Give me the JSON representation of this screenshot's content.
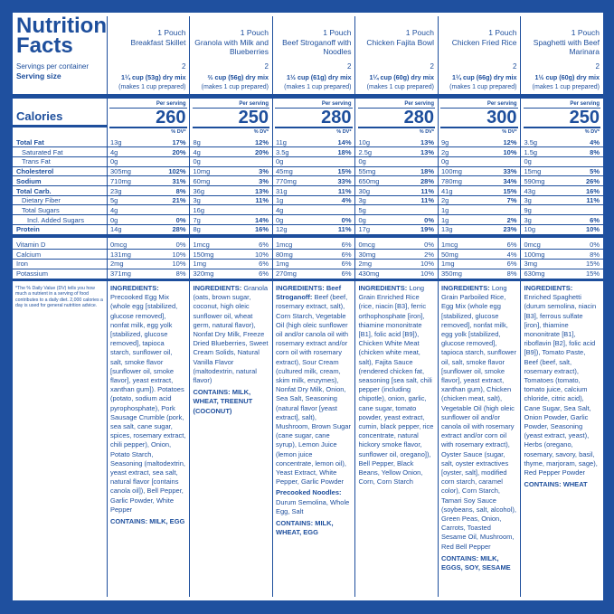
{
  "title": "Nutrition Facts",
  "servings_label": "Servings per container",
  "serving_size_label": "Serving size",
  "calories_label": "Calories",
  "per_serving_label": "Per serving",
  "dv_header": "% DV*",
  "nutrients": [
    {
      "label": "Total Fat",
      "level": 0
    },
    {
      "label": "Saturated Fat",
      "level": 1
    },
    {
      "label": "Trans Fat",
      "level": 1
    },
    {
      "label": "Cholesterol",
      "level": 0
    },
    {
      "label": "Sodium",
      "level": 0
    },
    {
      "label": "Total Carb.",
      "level": 0
    },
    {
      "label": "Dietary Fiber",
      "level": 1
    },
    {
      "label": "Total Sugars",
      "level": 1
    },
    {
      "label": "Incl. Added Sugars",
      "level": 2
    },
    {
      "label": "Protein",
      "level": 0
    }
  ],
  "micronutrients": [
    "Vitamin D",
    "Calcium",
    "Iron",
    "Potassium"
  ],
  "footnote": "*The % Daily Value (DV) tells you how much a nutrient in a serving of food contributes to a daily diet. 2,000 calories a day is used for general nutrition advice.",
  "products": [
    {
      "serving_label": "1 Pouch",
      "name": "Breakfast Skillet",
      "servings": 2,
      "serving_size": "1¼ cup (53g) dry mix",
      "serving_note": "(makes 1 cup prepared)",
      "calories": 260,
      "amounts": [
        "13g",
        "4g",
        "0g",
        "305mg",
        "710mg",
        "23g",
        "5g",
        "4g",
        "0g",
        "14g"
      ],
      "dv": [
        "17%",
        "20%",
        null,
        "102%",
        "31%",
        "8%",
        "21%",
        null,
        "0%",
        "28%"
      ],
      "micro_amounts": [
        "0mcg",
        "131mg",
        "2mg",
        "371mg"
      ],
      "micro_dv": [
        "0%",
        "10%",
        "10%",
        "8%"
      ],
      "ingredients": [
        {
          "heading": "INGREDIENTS:",
          "text": "Precooked Egg Mix (whole egg [stabilized, glucose removed], nonfat milk, egg yolk [stabilized, glucose removed], tapioca starch, sunflower oil, salt, smoke flavor [sunflower oil, smoke flavor], yeast extract, xanthan gum]). Potatoes (potato, sodium acid pyrophosphate), Pork Sausage Crumble (pork, sea salt, cane sugar, spices, rosemary extract, chili pepper), Onion, Potato Starch, Seasoning (maltodextrin, yeast extract, sea salt, natural flavor [contains canola oil]), Bell Pepper, Garlic Powder, White Pepper"
        }
      ],
      "contains": "CONTAINS: MILK, EGG"
    },
    {
      "serving_label": "1 Pouch",
      "name": "Granola with Milk and Blueberries",
      "servings": 2,
      "serving_size": "⅔ cup (56g) dry mix",
      "serving_note": "(makes 1 cup prepared)",
      "calories": 250,
      "amounts": [
        "8g",
        "4g",
        "0g",
        "10mg",
        "60mg",
        "36g",
        "3g",
        "16g",
        "7g",
        "8g"
      ],
      "dv": [
        "12%",
        "20%",
        null,
        "3%",
        "3%",
        "13%",
        "11%",
        null,
        "14%",
        "16%"
      ],
      "micro_amounts": [
        "1mcg",
        "150mg",
        "1mg",
        "320mg"
      ],
      "micro_dv": [
        "6%",
        "10%",
        "6%",
        "6%"
      ],
      "ingredients": [
        {
          "heading": "INGREDIENTS:",
          "text": "Granola (oats, brown sugar, coconut, high oleic sunflower oil, wheat germ, natural flavor), Nonfat Dry Milk, Freeze Dried Blueberries, Sweet Cream Solids, Natural Vanilla Flavor (maltodextrin, natural flavor)"
        }
      ],
      "contains": "CONTAINS: MILK, WHEAT, TREENUT (COCONUT)"
    },
    {
      "serving_label": "1 Pouch",
      "name": "Beef Stroganoff with Noodles",
      "servings": 2,
      "serving_size": "1½ cup (61g) dry mix",
      "serving_note": "(makes 1 cup prepared)",
      "calories": 280,
      "amounts": [
        "11g",
        "3.5g",
        "0g",
        "45mg",
        "770mg",
        "31g",
        "1g",
        "4g",
        "0g",
        "12g"
      ],
      "dv": [
        "14%",
        "18%",
        null,
        "15%",
        "33%",
        "11%",
        "4%",
        null,
        "0%",
        "11%"
      ],
      "micro_amounts": [
        "1mcg",
        "80mg",
        "1mg",
        "270mg"
      ],
      "micro_dv": [
        "6%",
        "6%",
        "6%",
        "6%"
      ],
      "ingredients": [
        {
          "heading": "INGREDIENTS: Beef Stroganoff:",
          "text": "Beef (beef, rosemary extract, salt), Corn Starch, Vegetable Oil (high oleic sunflower oil and/or canola oil with rosemary extract and/or corn oil with rosemary extract), Sour Cream (cultured milk, cream, skim milk, enzymes), Nonfat Dry Milk, Onion, Sea Salt, Seasoning (natural flavor [yeast extract], salt), Mushroom, Brown Sugar (cane sugar, cane syrup), Lemon Juice (lemon juice concentrate, lemon oil), Yeast Extract, White Pepper, Garlic Powder"
        },
        {
          "heading": "Precooked Noodles:",
          "text": "Durum Semolina, Whole Egg, Salt"
        }
      ],
      "contains": "CONTAINS: MILK, WHEAT, EGG"
    },
    {
      "serving_label": "1 Pouch",
      "name": "Chicken Fajita Bowl",
      "servings": 2,
      "serving_size": "1¼ cup (60g) dry mix",
      "serving_note": "(makes 1 cup prepared)",
      "calories": 280,
      "amounts": [
        "10g",
        "2.5g",
        "0g",
        "55mg",
        "650mg",
        "30g",
        "3g",
        "5g",
        "0g",
        "17g"
      ],
      "dv": [
        "13%",
        "13%",
        null,
        "18%",
        "28%",
        "11%",
        "11%",
        null,
        "0%",
        "19%"
      ],
      "micro_amounts": [
        "0mcg",
        "30mg",
        "2mg",
        "430mg"
      ],
      "micro_dv": [
        "0%",
        "2%",
        "10%",
        "10%"
      ],
      "ingredients": [
        {
          "heading": "INGREDIENTS:",
          "text": "Long Grain Enriched Rice (rice, niacin [B3], ferric orthophosphate [iron], thiamine mononitrate [B1], folic acid [B9]), Chicken White Meat (chicken white meat, salt), Fajita Sauce (rendered chicken fat, seasoning [sea salt, chili pepper (including chipotle), onion, garlic, cane sugar, tomato powder, yeast extract, cumin, black pepper, rice concentrate, natural hickory smoke flavor, sunflower oil, oregano]), Bell Pepper, Black Beans, Yellow Onion, Corn, Corn Starch"
        }
      ],
      "contains": null
    },
    {
      "serving_label": "1 Pouch",
      "name": "Chicken Fried Rice",
      "servings": 2,
      "serving_size": "1¼ cup (66g) dry mix",
      "serving_note": "(makes 1 cup prepared)",
      "calories": 300,
      "amounts": [
        "9g",
        "2g",
        "0g",
        "100mg",
        "780mg",
        "41g",
        "2g",
        "1g",
        "1g",
        "13g"
      ],
      "dv": [
        "12%",
        "10%",
        null,
        "33%",
        "34%",
        "15%",
        "7%",
        null,
        "2%",
        "23%"
      ],
      "micro_amounts": [
        "1mcg",
        "50mg",
        "1mg",
        "350mg"
      ],
      "micro_dv": [
        "6%",
        "4%",
        "6%",
        "8%"
      ],
      "ingredients": [
        {
          "heading": "INGREDIENTS:",
          "text": "Long Grain Parboiled Rice, Egg Mix (whole egg [stabilized, glucose removed], nonfat milk, egg yolk [stabilized, glucose removed], tapioca starch, sunflower oil, salt, smoke flavor [sunflower oil, smoke flavor], yeast extract, xanthan gum), Chicken (chicken meat, salt), Vegetable Oil (high oleic sunflower oil and/or canola oil with rosemary extract and/or corn oil with rosemary extract), Oyster Sauce (sugar, salt, oyster extractives [oyster, salt], modified corn starch, caramel color), Corn Starch, Tamari Soy Sauce (soybeans, salt, alcohol), Green Peas, Onion, Carrots, Toasted Sesame Oil, Mushroom, Red Bell Pepper"
        }
      ],
      "contains": "CONTAINS: MILK, EGGS, SOY, SESAME"
    },
    {
      "serving_label": "1 Pouch",
      "name": "Spaghetti with Beef Marinara",
      "servings": 2,
      "serving_size": "1½ cup (60g) dry mix",
      "serving_note": "(makes 1 cup prepared)",
      "calories": 250,
      "amounts": [
        "3.5g",
        "1.5g",
        "0g",
        "15mg",
        "590mg",
        "43g",
        "3g",
        "9g",
        "3g",
        "10g"
      ],
      "dv": [
        "4%",
        "8%",
        null,
        "5%",
        "26%",
        "16%",
        "11%",
        null,
        "6%",
        "10%"
      ],
      "micro_amounts": [
        "0mcg",
        "100mg",
        "3mg",
        "630mg"
      ],
      "micro_dv": [
        "0%",
        "8%",
        "15%",
        "15%"
      ],
      "ingredients": [
        {
          "heading": "INGREDIENTS:",
          "text": "Enriched Spaghetti (durum semolina, niacin [B3], ferrous sulfate [iron], thiamine mononitrate [B1], riboflavin [B2], folic acid [B9]), Tomato Paste, Beef (beef, salt, rosemary extract), Tomatoes (tomato, tomato juice, calcium chloride, citric acid), Cane Sugar, Sea Salt, Onion Powder, Garlic Powder, Seasoning (yeast extract, yeast), Herbs (oregano, rosemary, savory, basil, thyme, marjoram, sage), Red Pepper Powder"
        }
      ],
      "contains": "CONTAINS: WHEAT"
    }
  ]
}
